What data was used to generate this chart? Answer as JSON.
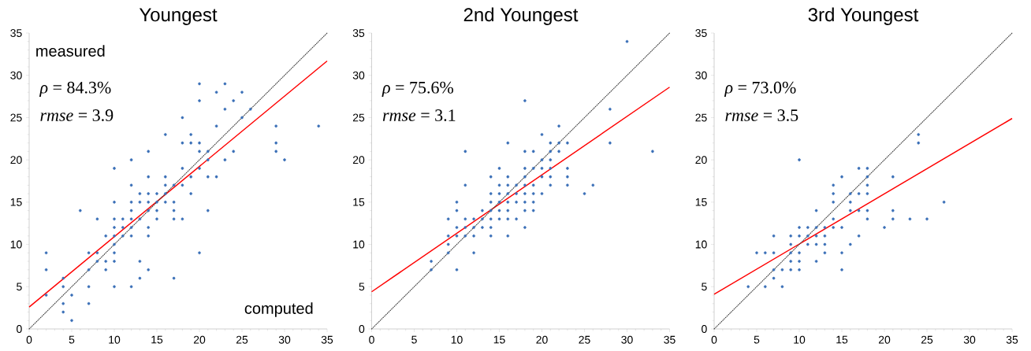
{
  "chart_data": [
    {
      "type": "scatter",
      "title": "Youngest",
      "xlabel": "computed",
      "ylabel": "measured",
      "annotations": [
        "*ρ* = 84.3%",
        "*rmse* = 3.9"
      ],
      "xlim": [
        0,
        35
      ],
      "ylim": [
        0,
        35
      ],
      "xticks": [
        0,
        5,
        10,
        15,
        20,
        25,
        30,
        35
      ],
      "yticks": [
        0,
        5,
        10,
        15,
        20,
        25,
        30,
        35
      ],
      "series": [
        {
          "type": "scatter",
          "marker": "circle",
          "color": "#3a6fb7",
          "x": [
            20,
            23,
            22,
            25,
            20,
            24,
            23,
            26,
            18,
            25,
            22,
            29,
            34,
            16,
            19,
            18,
            19,
            20,
            29,
            14,
            20,
            21,
            24,
            29,
            12,
            21,
            23,
            30,
            10,
            18,
            20,
            14,
            16,
            19,
            21,
            22,
            12,
            16,
            17,
            18,
            13,
            14,
            15,
            16,
            19,
            10,
            12,
            13,
            14,
            15,
            16,
            17,
            6,
            12,
            14,
            15,
            17,
            21,
            8,
            10,
            11,
            12,
            13,
            15,
            17,
            18,
            10,
            11,
            12,
            14,
            9,
            10,
            11,
            12,
            14,
            10,
            2,
            7,
            8,
            10,
            20,
            8,
            9,
            10,
            13,
            2,
            7,
            9,
            14,
            4,
            13,
            17,
            4,
            7,
            10,
            12,
            2,
            5,
            4,
            7,
            4,
            5
          ],
          "values": [
            29,
            29,
            28,
            28,
            27,
            27,
            26,
            26,
            25,
            25,
            24,
            24,
            24,
            23,
            23,
            22,
            22,
            22,
            22,
            21,
            21,
            21,
            21,
            21,
            20,
            20,
            20,
            20,
            19,
            19,
            19,
            18,
            18,
            18,
            18,
            18,
            17,
            17,
            17,
            17,
            16,
            16,
            16,
            16,
            16,
            15,
            15,
            15,
            15,
            15,
            15,
            15,
            14,
            14,
            14,
            14,
            14,
            14,
            13,
            13,
            13,
            13,
            13,
            13,
            13,
            13,
            12,
            12,
            12,
            12,
            11,
            11,
            11,
            11,
            11,
            10,
            9,
            9,
            9,
            9,
            9,
            8,
            8,
            8,
            8,
            7,
            7,
            7,
            7,
            6,
            6,
            6,
            5,
            5,
            5,
            5,
            4,
            4,
            3,
            3,
            2,
            1
          ]
        },
        {
          "type": "line",
          "marker": "none",
          "line_style": "solid",
          "color": "#ff0000",
          "x": [
            0,
            35
          ],
          "values": [
            2.6,
            31.7
          ]
        },
        {
          "type": "line",
          "marker": "none",
          "line_style": "dotted",
          "color": "#404040",
          "x": [
            0,
            35
          ],
          "values": [
            0,
            35
          ]
        }
      ]
    },
    {
      "type": "scatter",
      "title": "2nd Youngest",
      "annotations": [
        "*ρ* = 75.6%",
        "*rmse* = 3.1"
      ],
      "xlim": [
        0,
        35
      ],
      "ylim": [
        0,
        35
      ],
      "xticks": [
        0,
        5,
        10,
        15,
        20,
        25,
        30,
        35
      ],
      "yticks": [
        0,
        5,
        10,
        15,
        20,
        25,
        30,
        35
      ],
      "series": [
        {
          "type": "scatter",
          "marker": "circle",
          "color": "#3a6fb7",
          "x": [
            30,
            18,
            28,
            22,
            20,
            16,
            21,
            22,
            23,
            28,
            11,
            18,
            19,
            21,
            22,
            33,
            20,
            21,
            15,
            18,
            19,
            20,
            21,
            23,
            14,
            16,
            18,
            20,
            21,
            23,
            11,
            15,
            16,
            17,
            18,
            19,
            21,
            23,
            26,
            14,
            15,
            16,
            17,
            18,
            19,
            20,
            25,
            10,
            14,
            15,
            16,
            17,
            18,
            19,
            10,
            13,
            14,
            15,
            16,
            18,
            19,
            9,
            11,
            12,
            13,
            14,
            15,
            16,
            17,
            10,
            11,
            12,
            13,
            14,
            18,
            9,
            10,
            11,
            12,
            14,
            16,
            9,
            9,
            12,
            7,
            7,
            10
          ],
          "values": [
            34,
            27,
            26,
            24,
            23,
            22,
            22,
            22,
            22,
            22,
            21,
            21,
            21,
            21,
            21,
            21,
            20,
            20,
            19,
            19,
            19,
            19,
            19,
            19,
            18,
            18,
            18,
            18,
            18,
            18,
            17,
            17,
            17,
            17,
            17,
            17,
            17,
            17,
            17,
            16,
            16,
            16,
            16,
            16,
            16,
            16,
            16,
            15,
            15,
            15,
            15,
            15,
            15,
            15,
            14,
            14,
            14,
            14,
            14,
            14,
            14,
            13,
            13,
            13,
            13,
            13,
            13,
            13,
            13,
            12,
            12,
            12,
            12,
            12,
            12,
            11,
            11,
            11,
            11,
            11,
            11,
            10,
            9,
            9,
            8,
            7,
            7
          ]
        },
        {
          "type": "line",
          "marker": "none",
          "line_style": "solid",
          "color": "#ff0000",
          "x": [
            0,
            35
          ],
          "values": [
            4.4,
            28.6
          ]
        },
        {
          "type": "line",
          "marker": "none",
          "line_style": "dotted",
          "color": "#404040",
          "x": [
            0,
            35
          ],
          "values": [
            0,
            35
          ]
        }
      ]
    },
    {
      "type": "scatter",
      "title": "3rd Youngest",
      "annotations": [
        "*ρ* = 73.0%",
        "*rmse* = 3.5"
      ],
      "xlim": [
        0,
        35
      ],
      "ylim": [
        0,
        35
      ],
      "xticks": [
        0,
        5,
        10,
        15,
        20,
        25,
        30,
        35
      ],
      "yticks": [
        0,
        5,
        10,
        15,
        20,
        25,
        30,
        35
      ],
      "series": [
        {
          "type": "scatter",
          "marker": "circle",
          "color": "#3a6fb7",
          "x": [
            24,
            24,
            10,
            17,
            18,
            15,
            18,
            21,
            14,
            18,
            14,
            16,
            17,
            18,
            14,
            16,
            27,
            12,
            16,
            17,
            18,
            21,
            14,
            18,
            21,
            23,
            25,
            10,
            11,
            12,
            13,
            14,
            15,
            20,
            7,
            9,
            10,
            11,
            12,
            13,
            17,
            9,
            11,
            12,
            13,
            16,
            5,
            6,
            7,
            9,
            10,
            13,
            15,
            9,
            10,
            12,
            7,
            8,
            9,
            10,
            15,
            7,
            4,
            6,
            8
          ],
          "values": [
            23,
            22,
            20,
            19,
            19,
            18,
            18,
            18,
            17,
            17,
            16,
            16,
            16,
            16,
            15,
            15,
            15,
            14,
            14,
            14,
            14,
            14,
            13,
            13,
            13,
            13,
            13,
            12,
            12,
            12,
            12,
            12,
            12,
            12,
            11,
            11,
            11,
            11,
            11,
            11,
            11,
            10,
            10,
            10,
            10,
            10,
            9,
            9,
            9,
            9,
            9,
            9,
            9,
            8,
            8,
            8,
            7,
            7,
            7,
            7,
            7,
            6,
            5,
            5,
            5
          ]
        },
        {
          "type": "line",
          "marker": "none",
          "line_style": "solid",
          "color": "#ff0000",
          "x": [
            0,
            35
          ],
          "values": [
            4.1,
            24.9
          ]
        },
        {
          "type": "line",
          "marker": "none",
          "line_style": "dotted",
          "color": "#404040",
          "x": [
            0,
            35
          ],
          "values": [
            0,
            35
          ]
        }
      ]
    }
  ]
}
